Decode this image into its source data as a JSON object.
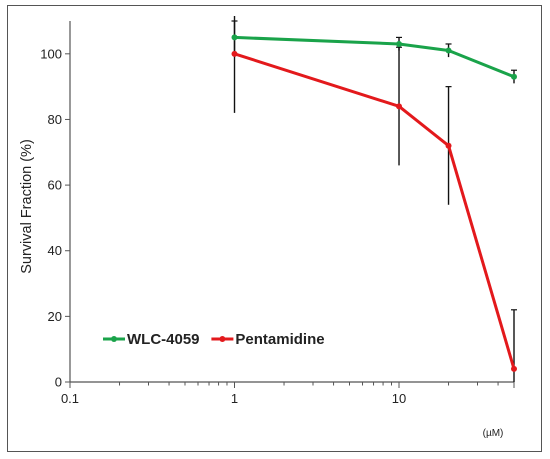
{
  "chart_data": {
    "type": "line",
    "title": "",
    "xlabel": "",
    "ylabel": "Survival Fraction (%)",
    "x_unit": "(µM)",
    "x_scale": "log",
    "xlim": [
      0.1,
      50
    ],
    "ylim": [
      0,
      110
    ],
    "x_ticks": [
      0.1,
      1,
      10
    ],
    "x_tick_labels": [
      "0.1",
      "1",
      "10"
    ],
    "y_ticks": [
      0,
      20,
      40,
      60,
      80,
      100
    ],
    "y_tick_labels": [
      "0",
      "20",
      "40",
      "60",
      "80",
      "100"
    ],
    "grid": false,
    "legend_position": "bottom-left",
    "series": [
      {
        "name": "WLC-4059",
        "color": "#1aa34a",
        "x": [
          1,
          10,
          20,
          50
        ],
        "y": [
          105,
          103,
          101,
          93
        ],
        "yerr": [
          5,
          2,
          2,
          2
        ]
      },
      {
        "name": "Pentamidine",
        "color": "#e3191c",
        "x": [
          1,
          10,
          20,
          50
        ],
        "y": [
          100,
          84,
          72,
          4
        ],
        "yerr": [
          18,
          18,
          18,
          18
        ]
      }
    ]
  }
}
